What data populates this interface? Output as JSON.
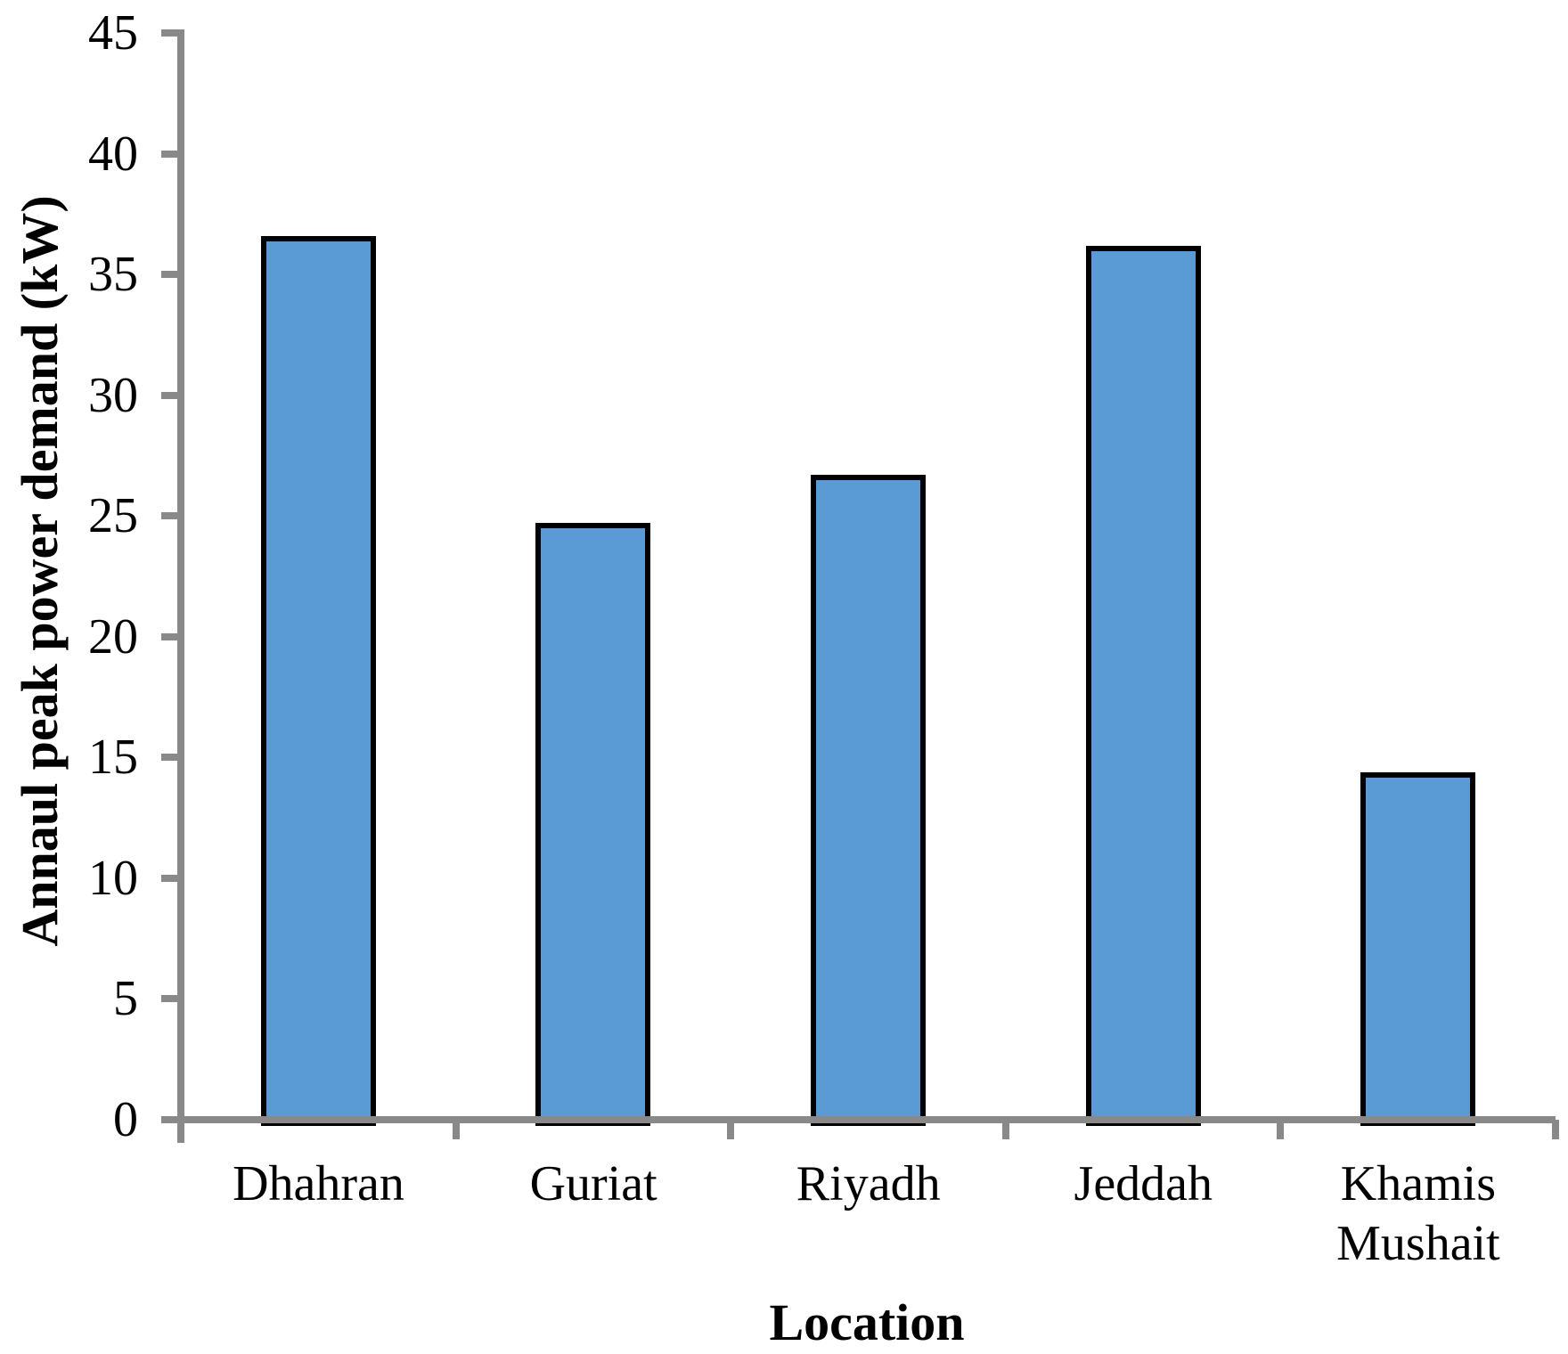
{
  "chart_data": {
    "type": "bar",
    "title": "",
    "xlabel": "Location",
    "ylabel": "Annaul peak power demand (kW)",
    "categories": [
      "Dhahran",
      "Guriat",
      "Riyadh",
      "Jeddah",
      "Khamis Mushait"
    ],
    "values": [
      36.6,
      24.7,
      26.7,
      36.2,
      14.4
    ],
    "ylim": [
      0,
      45
    ],
    "yticks": [
      0,
      5,
      10,
      15,
      20,
      25,
      30,
      35,
      40,
      45
    ],
    "grid": false,
    "legend": "none",
    "colors": {
      "bar_fill": "#5B9BD5",
      "bar_border": "#000000",
      "axis": "#898989",
      "text": "#000000",
      "background": "#FFFFFF"
    }
  }
}
